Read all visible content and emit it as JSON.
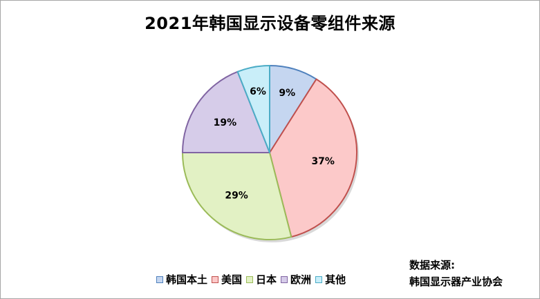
{
  "chart_data": {
    "type": "pie",
    "title": "2021年韩国显示设备零组件来源",
    "categories": [
      "韩国本土",
      "美国",
      "日本",
      "欧洲",
      "其他"
    ],
    "values": [
      9,
      37,
      29,
      19,
      6
    ],
    "labels": [
      "9%",
      "37%",
      "29%",
      "19%",
      "6%"
    ],
    "colors": [
      "#c5d6f0",
      "#fcc9c9",
      "#e2f1c4",
      "#d6cce9",
      "#c9eef9"
    ],
    "strokes": [
      "#4f81bd",
      "#c0504d",
      "#9bbb59",
      "#8064a2",
      "#4bacc6"
    ],
    "legend_position": "bottom"
  },
  "source": {
    "line1": "数据来源:",
    "line2": "韩国显示器产业协会"
  }
}
